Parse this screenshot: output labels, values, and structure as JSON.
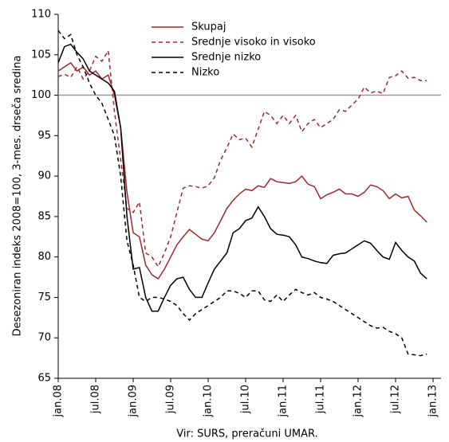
{
  "chart_data": {
    "type": "line",
    "y_label": "Desezoniran indeks 2008=100, 3-mes. drseča sredina",
    "source": "Vir: SURS, preračuni UMAR.",
    "categories": [
      "jan.08",
      null,
      null,
      null,
      null,
      null,
      "jul.08",
      null,
      null,
      null,
      null,
      null,
      "jan.09",
      null,
      null,
      null,
      null,
      null,
      "jul.09",
      null,
      null,
      null,
      null,
      null,
      "jan.10",
      null,
      null,
      null,
      null,
      null,
      "jul.10",
      null,
      null,
      null,
      null,
      null,
      "jan.11",
      null,
      null,
      null,
      null,
      null,
      "jul.11",
      null,
      null,
      null,
      null,
      null,
      "jan.12",
      null,
      null,
      null,
      null,
      null,
      "jul.12",
      null,
      null,
      null,
      null,
      null,
      "jan.13"
    ],
    "ylim": [
      65,
      110
    ],
    "yticks": [
      65,
      70,
      75,
      80,
      85,
      90,
      95,
      100,
      105,
      110
    ],
    "hline": 100,
    "legend": "top",
    "series": [
      {
        "name": "Skupaj",
        "color": "#a3262a",
        "dashed": false,
        "values": [
          103,
          103.5,
          104,
          103,
          103.5,
          102.5,
          103,
          102,
          102.5,
          100,
          96,
          88,
          83,
          82.5,
          79,
          77.8,
          77.3,
          78.5,
          80,
          81.5,
          82.5,
          83.4,
          82.8,
          82.2,
          82,
          83,
          84.5,
          86,
          87,
          87.8,
          88.4,
          88.2,
          88.8,
          88.6,
          89.7,
          89.3,
          89.2,
          89.1,
          89.3,
          90,
          89,
          88.7,
          87.2,
          87.7,
          88,
          88.4,
          87.8,
          87.8,
          87.5,
          88,
          88.9,
          88.7,
          88.2,
          87.2,
          87.8,
          87.3,
          87.5,
          85.8,
          85.1,
          84.3,
          null
        ]
      },
      {
        "name": "Srednje visoko in visoko",
        "color": "#a3262a",
        "dashed": true,
        "values": [
          102.3,
          102.6,
          102.2,
          103.5,
          102,
          103,
          104.8,
          104.2,
          105.5,
          98,
          92,
          86,
          85.5,
          86.8,
          80.5,
          80,
          78.8,
          80.5,
          82.5,
          85.5,
          88.5,
          88.8,
          88.7,
          88.5,
          88.8,
          89.8,
          92,
          93.5,
          95.2,
          94.5,
          94.7,
          93.6,
          95.8,
          98,
          97.5,
          96.5,
          97.5,
          96.5,
          97.5,
          95.5,
          96.5,
          97,
          96,
          96.5,
          97,
          98.2,
          98,
          98.8,
          99.5,
          101,
          100.3,
          100.5,
          100.2,
          102.2,
          102.4,
          103,
          102.1,
          102.2,
          101.8,
          101.8,
          null
        ]
      },
      {
        "name": "Srednje nizko",
        "color": "#000000",
        "dashed": false,
        "values": [
          104,
          106,
          106.3,
          105.3,
          104.5,
          103,
          102.5,
          102,
          101.5,
          100.5,
          96,
          85,
          78.5,
          78.7,
          75,
          73.3,
          73.3,
          75,
          76.5,
          77.3,
          77.5,
          76,
          75,
          75,
          76.8,
          78.5,
          79.5,
          80.5,
          83,
          83.5,
          84.5,
          84.8,
          86.2,
          85,
          83.5,
          82.8,
          82.7,
          82.5,
          81.5,
          80,
          79.8,
          79.5,
          79.3,
          79.2,
          80.2,
          80.4,
          80.5,
          81,
          81.5,
          82,
          81.7,
          80.8,
          80,
          79.7,
          81.8,
          80.8,
          80,
          79.5,
          78,
          77.3,
          null
        ]
      },
      {
        "name": "Nizko",
        "color": "#000000",
        "dashed": true,
        "values": [
          108,
          107,
          107.5,
          105,
          103.5,
          101.5,
          100,
          99,
          97,
          95,
          90,
          82,
          79,
          75,
          74.5,
          75,
          75,
          74.8,
          74.5,
          74,
          73,
          72.2,
          73,
          73.5,
          74,
          74.5,
          75,
          75.8,
          75.8,
          75.5,
          75,
          75.8,
          75.8,
          74.7,
          74.5,
          75.3,
          74.5,
          75.3,
          76,
          75.6,
          75.3,
          75.6,
          75,
          74.8,
          74.5,
          74,
          73.5,
          73,
          72.5,
          72,
          71.5,
          71.2,
          71.3,
          70.8,
          70.5,
          70,
          68,
          67.9,
          67.8,
          68,
          null
        ]
      }
    ]
  }
}
